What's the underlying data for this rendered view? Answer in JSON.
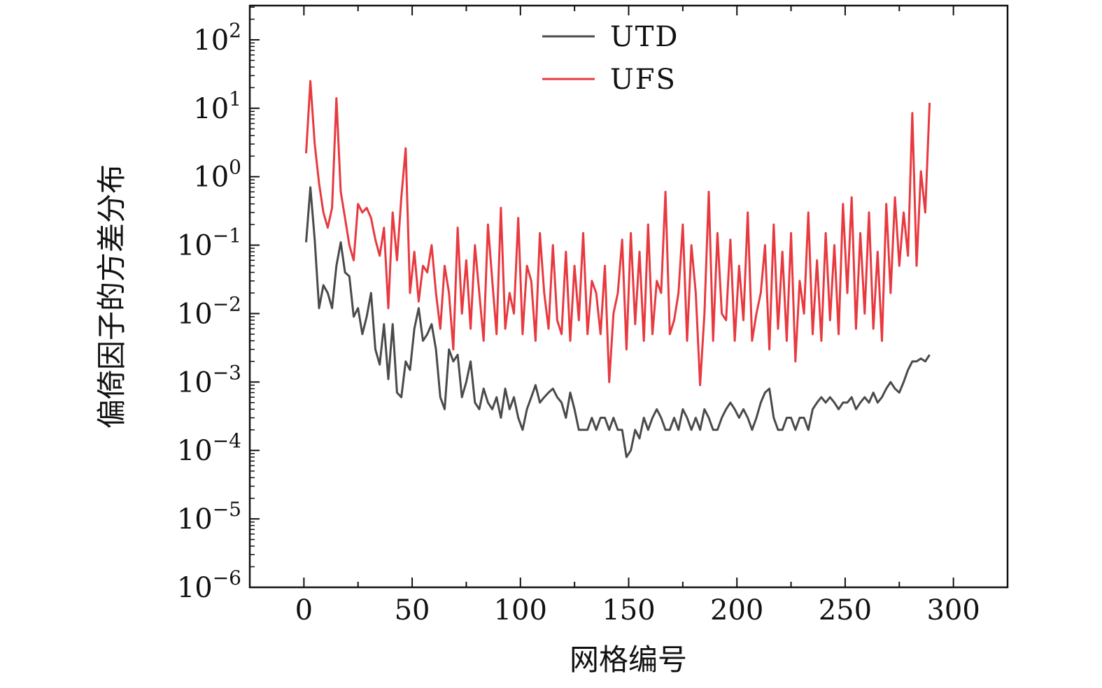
{
  "chart_data": {
    "type": "line",
    "title": "",
    "xlabel": "网格编号",
    "ylabel": "偏倚因子的方差分布",
    "xlim": [
      -25,
      325
    ],
    "ylim_log10": [
      -6,
      2.5
    ],
    "y_scale": "log",
    "xticks": [
      0,
      50,
      100,
      150,
      200,
      250,
      300
    ],
    "xtick_labels": [
      "0",
      "50",
      "100",
      "150",
      "200",
      "250",
      "300"
    ],
    "ytick_exponents": [
      -6,
      -5,
      -4,
      -3,
      -2,
      -1,
      0,
      1,
      2
    ],
    "ytick_base": "10",
    "ytick_exponent_labels": [
      "−6",
      "−5",
      "−4",
      "−3",
      "−2",
      "−1",
      "0",
      "1",
      "2"
    ],
    "legend_position": "top-center",
    "series": [
      {
        "name": "UTD",
        "color": "#4a4a4a",
        "x": [
          1,
          3,
          5,
          7,
          9,
          11,
          13,
          15,
          17,
          19,
          21,
          23,
          25,
          27,
          29,
          31,
          33,
          35,
          37,
          39,
          41,
          43,
          45,
          47,
          49,
          51,
          53,
          55,
          57,
          59,
          61,
          63,
          65,
          67,
          69,
          71,
          73,
          75,
          77,
          79,
          81,
          83,
          85,
          87,
          89,
          91,
          93,
          95,
          97,
          99,
          101,
          103,
          105,
          107,
          109,
          111,
          113,
          115,
          117,
          119,
          121,
          123,
          125,
          127,
          129,
          131,
          133,
          135,
          137,
          139,
          141,
          143,
          145,
          147,
          149,
          151,
          153,
          155,
          157,
          159,
          161,
          163,
          165,
          167,
          169,
          171,
          173,
          175,
          177,
          179,
          181,
          183,
          185,
          187,
          189,
          191,
          193,
          195,
          197,
          199,
          201,
          203,
          205,
          207,
          209,
          211,
          213,
          215,
          217,
          219,
          221,
          223,
          225,
          227,
          229,
          231,
          233,
          235,
          237,
          239,
          241,
          243,
          245,
          247,
          249,
          251,
          253,
          255,
          257,
          259,
          261,
          263,
          265,
          267,
          269,
          271,
          273,
          275,
          277,
          279,
          281,
          283,
          285,
          287,
          289
        ],
        "values": [
          0.11,
          0.7,
          0.12,
          0.012,
          0.026,
          0.02,
          0.012,
          0.05,
          0.11,
          0.04,
          0.035,
          0.009,
          0.012,
          0.005,
          0.009,
          0.02,
          0.003,
          0.0018,
          0.007,
          0.0011,
          0.007,
          0.0007,
          0.0006,
          0.002,
          0.0015,
          0.006,
          0.012,
          0.004,
          0.005,
          0.007,
          0.003,
          0.0006,
          0.0004,
          0.003,
          0.002,
          0.0025,
          0.0006,
          0.001,
          0.002,
          0.0005,
          0.0004,
          0.0008,
          0.0005,
          0.0004,
          0.0006,
          0.0003,
          0.0008,
          0.0004,
          0.0006,
          0.0003,
          0.0002,
          0.0004,
          0.0006,
          0.0009,
          0.0005,
          0.0006,
          0.0007,
          0.0008,
          0.0006,
          0.0005,
          0.0003,
          0.0007,
          0.0004,
          0.0002,
          0.0002,
          0.0002,
          0.0003,
          0.0002,
          0.0003,
          0.0003,
          0.0002,
          0.0003,
          0.0002,
          0.0002,
          8e-05,
          0.0001,
          0.0002,
          0.00015,
          0.0003,
          0.0002,
          0.0003,
          0.0004,
          0.0003,
          0.0002,
          0.0002,
          0.0003,
          0.0002,
          0.0004,
          0.0003,
          0.0002,
          0.0003,
          0.0002,
          0.0004,
          0.0003,
          0.0002,
          0.0002,
          0.0003,
          0.0004,
          0.0005,
          0.0004,
          0.0003,
          0.0004,
          0.0003,
          0.0002,
          0.0003,
          0.0005,
          0.0007,
          0.0008,
          0.0003,
          0.0002,
          0.0002,
          0.0003,
          0.0003,
          0.0002,
          0.0003,
          0.0003,
          0.0002,
          0.0004,
          0.0005,
          0.0006,
          0.0005,
          0.0006,
          0.0005,
          0.0004,
          0.0005,
          0.0005,
          0.0006,
          0.0004,
          0.0005,
          0.0006,
          0.0005,
          0.0007,
          0.0005,
          0.0006,
          0.0008,
          0.001,
          0.0008,
          0.0007,
          0.001,
          0.0015,
          0.002,
          0.002,
          0.0022,
          0.002,
          0.0025
        ]
      },
      {
        "name": "UFS",
        "color": "#e8393f",
        "x": [
          1,
          3,
          5,
          7,
          9,
          11,
          13,
          15,
          17,
          19,
          21,
          23,
          25,
          27,
          29,
          31,
          33,
          35,
          37,
          39,
          41,
          43,
          45,
          47,
          49,
          51,
          53,
          55,
          57,
          59,
          61,
          63,
          65,
          67,
          69,
          71,
          73,
          75,
          77,
          79,
          81,
          83,
          85,
          87,
          89,
          91,
          93,
          95,
          97,
          99,
          101,
          103,
          105,
          107,
          109,
          111,
          113,
          115,
          117,
          119,
          121,
          123,
          125,
          127,
          129,
          131,
          133,
          135,
          137,
          139,
          141,
          143,
          145,
          147,
          149,
          151,
          153,
          155,
          157,
          159,
          161,
          163,
          165,
          167,
          169,
          171,
          173,
          175,
          177,
          179,
          181,
          183,
          185,
          187,
          189,
          191,
          193,
          195,
          197,
          199,
          201,
          203,
          205,
          207,
          209,
          211,
          213,
          215,
          217,
          219,
          221,
          223,
          225,
          227,
          229,
          231,
          233,
          235,
          237,
          239,
          241,
          243,
          245,
          247,
          249,
          251,
          253,
          255,
          257,
          259,
          261,
          263,
          265,
          267,
          269,
          271,
          273,
          275,
          277,
          279,
          281,
          283,
          285,
          287,
          289
        ],
        "values": [
          2.2,
          25.0,
          3.0,
          0.8,
          0.3,
          0.18,
          0.35,
          14.0,
          0.6,
          0.25,
          0.1,
          0.06,
          0.4,
          0.3,
          0.35,
          0.25,
          0.12,
          0.07,
          0.18,
          0.012,
          0.3,
          0.06,
          0.5,
          2.6,
          0.02,
          0.08,
          0.015,
          0.05,
          0.04,
          0.1,
          0.02,
          0.006,
          0.05,
          0.02,
          0.003,
          0.18,
          0.01,
          0.06,
          0.006,
          0.1,
          0.02,
          0.004,
          0.2,
          0.03,
          0.005,
          0.35,
          0.006,
          0.02,
          0.01,
          0.25,
          0.005,
          0.05,
          0.03,
          0.004,
          0.15,
          0.02,
          0.006,
          0.1,
          0.008,
          0.005,
          0.08,
          0.004,
          0.05,
          0.008,
          0.15,
          0.005,
          0.03,
          0.02,
          0.005,
          0.05,
          0.001,
          0.01,
          0.02,
          0.12,
          0.003,
          0.15,
          0.007,
          0.08,
          0.004,
          0.2,
          0.005,
          0.03,
          0.02,
          0.6,
          0.005,
          0.008,
          0.02,
          0.2,
          0.004,
          0.1,
          0.02,
          0.0009,
          0.01,
          0.6,
          0.004,
          0.15,
          0.01,
          0.008,
          0.12,
          0.004,
          0.05,
          0.008,
          0.3,
          0.004,
          0.01,
          0.02,
          0.1,
          0.003,
          0.2,
          0.006,
          0.08,
          0.004,
          0.15,
          0.002,
          0.03,
          0.01,
          0.3,
          0.005,
          0.06,
          0.004,
          0.15,
          0.008,
          0.1,
          0.005,
          0.4,
          0.02,
          0.5,
          0.006,
          0.15,
          0.01,
          0.3,
          0.006,
          0.08,
          0.004,
          0.4,
          0.02,
          0.5,
          0.05,
          0.3,
          0.07,
          8.5,
          0.05,
          1.2,
          0.3,
          12.0
        ]
      }
    ]
  }
}
